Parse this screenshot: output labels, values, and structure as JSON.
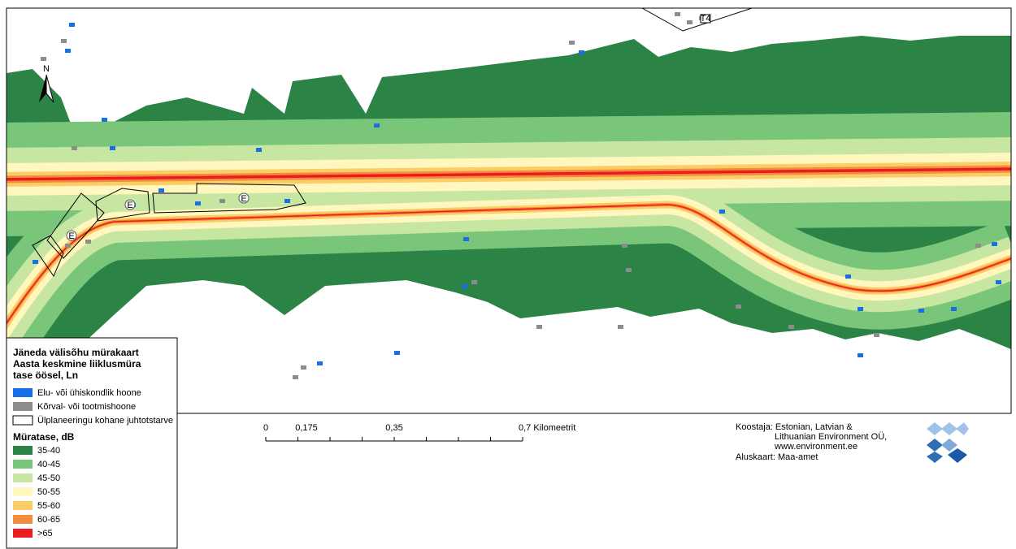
{
  "legend": {
    "title": [
      "Jäneda välisõhu mürakaart",
      "Aasta keskmine liiklusmüra",
      "tase öösel, Ln"
    ],
    "features": [
      {
        "label": "Elu- või ühiskondlik hoone",
        "color": "#1a6fe6"
      },
      {
        "label": "Kõrval- või tootmishoone",
        "color": "#8c8c8c"
      },
      {
        "label": "Ülplaneeringu kohane juhtotstarve",
        "color": "#000000"
      }
    ],
    "noise_title": "Müratase, dB",
    "classes": [
      {
        "label": "35-40",
        "color": "#2b8446"
      },
      {
        "label": "40-45",
        "color": "#79c57a"
      },
      {
        "label": "45-50",
        "color": "#c6e6a2"
      },
      {
        "label": "50-55",
        "color": "#fff7bd"
      },
      {
        "label": "55-60",
        "color": "#fbcd67"
      },
      {
        "label": "60-65",
        "color": "#f38c3f"
      },
      {
        "label": ">65",
        "color": "#ea1c1f"
      }
    ]
  },
  "scale": {
    "labels": [
      "0",
      "0,175",
      "0,35",
      "0,7 Kilomeetrit"
    ]
  },
  "credits": [
    "Koostaja: Estonian, Latvian &",
    "Lithuanian Environment OÜ,",
    "www.environment.ee",
    "Aluskaart: Maa-amet"
  ],
  "map_labels": {
    "north": "N",
    "zones": [
      "E",
      "E",
      "E"
    ],
    "road": "T4"
  }
}
